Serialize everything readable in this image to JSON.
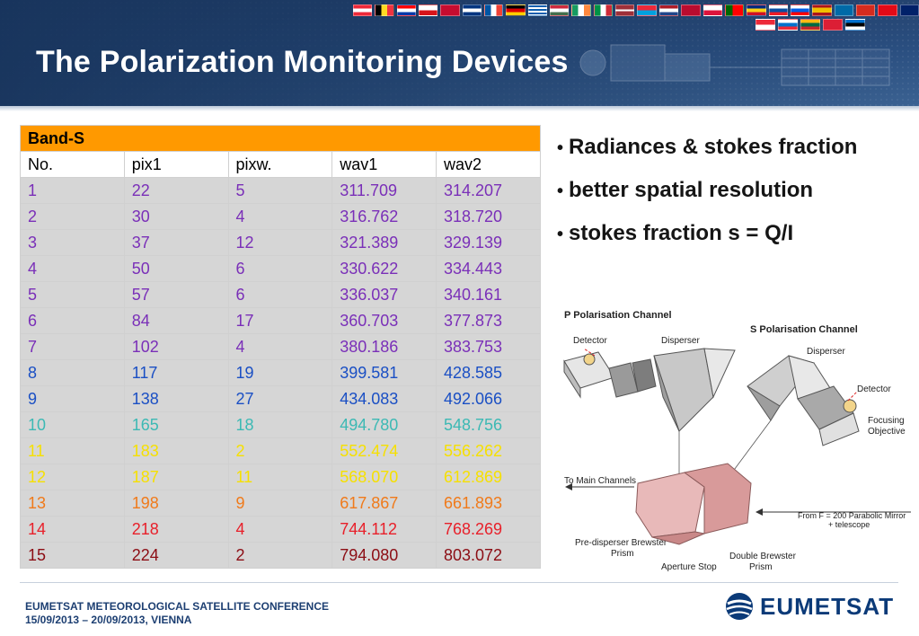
{
  "title": "The Polarization Monitoring Devices",
  "table": {
    "band_label": "Band-S",
    "columns": [
      "No.",
      "pix1",
      "pixw.",
      "wav1",
      "wav2"
    ],
    "rows": [
      {
        "cells": [
          "1",
          "22",
          "5",
          "311.709",
          "314.207"
        ],
        "color": "#7a2fb8"
      },
      {
        "cells": [
          "2",
          "30",
          "4",
          "316.762",
          "318.720"
        ],
        "color": "#7a2fb8"
      },
      {
        "cells": [
          "3",
          "37",
          "12",
          "321.389",
          "329.139"
        ],
        "color": "#7a2fb8"
      },
      {
        "cells": [
          "4",
          "50",
          "6",
          "330.622",
          "334.443"
        ],
        "color": "#7a2fb8"
      },
      {
        "cells": [
          "5",
          "57",
          "6",
          "336.037",
          "340.161"
        ],
        "color": "#7a2fb8"
      },
      {
        "cells": [
          "6",
          "84",
          "17",
          "360.703",
          "377.873"
        ],
        "color": "#7a2fb8"
      },
      {
        "cells": [
          "7",
          "102",
          "4",
          "380.186",
          "383.753"
        ],
        "color": "#7a2fb8"
      },
      {
        "cells": [
          "8",
          "117",
          "19",
          "399.581",
          "428.585"
        ],
        "color": "#1a4fc4"
      },
      {
        "cells": [
          "9",
          "138",
          "27",
          "434.083",
          "492.066"
        ],
        "color": "#1a4fc4"
      },
      {
        "cells": [
          "10",
          "165",
          "18",
          "494.780",
          "548.756"
        ],
        "color": "#3cb9b4"
      },
      {
        "cells": [
          "11",
          "183",
          "2",
          "552.474",
          "556.262"
        ],
        "color": "#f6e000"
      },
      {
        "cells": [
          "12",
          "187",
          "11",
          "568.070",
          "612.869"
        ],
        "color": "#f6e000"
      },
      {
        "cells": [
          "13",
          "198",
          "9",
          "617.867",
          "661.893"
        ],
        "color": "#f07a1a"
      },
      {
        "cells": [
          "14",
          "218",
          "4",
          "744.112",
          "768.269"
        ],
        "color": "#e8202a"
      },
      {
        "cells": [
          "15",
          "224",
          "2",
          "794.080",
          "803.072"
        ],
        "color": "#8c0d14"
      }
    ]
  },
  "bullets": [
    "Radiances & stokes fraction",
    "better spatial resolution",
    "stokes fraction s = Q/I"
  ],
  "diagram": {
    "p_channel": "P Polarisation Channel",
    "s_channel": "S Polarisation Channel",
    "detector_left": "Detector",
    "disperser_left": "Disperser",
    "disperser_right": "Disperser",
    "detector_right": "Detector",
    "focusing_1": "Focusing",
    "focusing_2": "Objective",
    "to_main": "To Main Channels",
    "from_f_1": "From F = 200 Parabolic Mirror",
    "from_f_2": "+ telescope",
    "predisperser_1": "Pre-disperser Brewster",
    "predisperser_2": "Prism",
    "aperture": "Aperture Stop",
    "double_1": "Double Brewster",
    "double_2": "Prism"
  },
  "footer": {
    "conference": "EUMETSAT METEOROLOGICAL SATELLITE CONFERENCE",
    "dates": "15/09/2013 – 20/09/2013, VIENNA",
    "logo_text": "EUMETSAT"
  },
  "colors": {
    "band_header": "#ff9900",
    "row_background": "#d6d6d6",
    "banner": "#244a7c",
    "footer_text": "#1d3f72"
  },
  "icons": {
    "logo": "eumetsat-globe-icon",
    "flags": "eu-member-flags-icon",
    "satellite": "satellite-illustration-icon"
  }
}
